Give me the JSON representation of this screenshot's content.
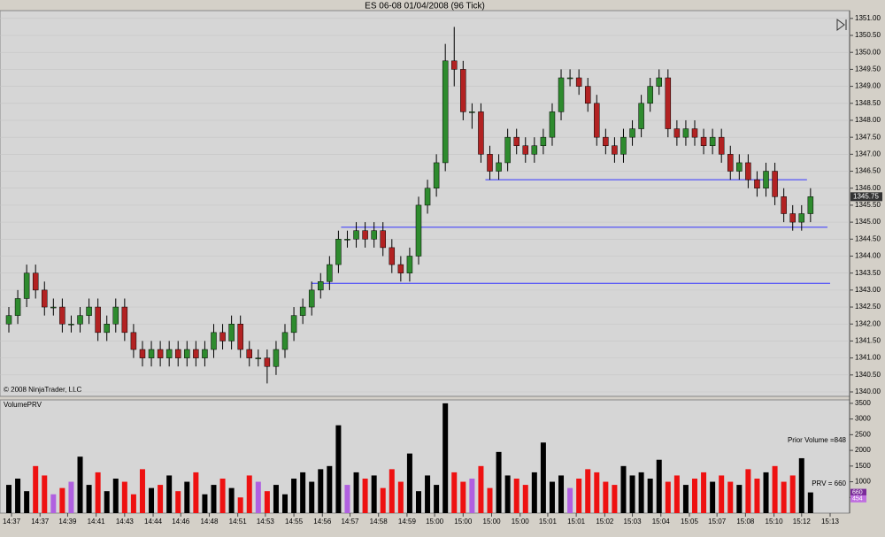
{
  "chart_data": [
    {
      "type": "candlestick",
      "title": "ES 06-08  01/04/2008 (96 Tick)",
      "copyright": "© 2008 NinjaTrader, LLC",
      "up_color": "#2e8b2e",
      "down_color": "#b22222",
      "xlim": [
        0,
        92.4
      ],
      "ylim": [
        1339.87,
        1351.23
      ],
      "xticks": [
        {
          "value": 0.3,
          "label": "14:37"
        },
        {
          "value": 3.5,
          "label": "14:37"
        },
        {
          "value": 6.6,
          "label": "14:39"
        },
        {
          "value": 9.8,
          "label": "14:41"
        },
        {
          "value": 13,
          "label": "14:43"
        },
        {
          "value": 16.2,
          "label": "14:44"
        },
        {
          "value": 19.3,
          "label": "14:46"
        },
        {
          "value": 22.5,
          "label": "14:48"
        },
        {
          "value": 25.7,
          "label": "14:51"
        },
        {
          "value": 28.8,
          "label": "14:53"
        },
        {
          "value": 32,
          "label": "14:55"
        },
        {
          "value": 35.2,
          "label": "14:56"
        },
        {
          "value": 38.3,
          "label": "14:57"
        },
        {
          "value": 41.5,
          "label": "14:58"
        },
        {
          "value": 44.7,
          "label": "14:59"
        },
        {
          "value": 47.8,
          "label": "15:00"
        },
        {
          "value": 51,
          "label": "15:00"
        },
        {
          "value": 54.2,
          "label": "15:00"
        },
        {
          "value": 57.4,
          "label": "15:00"
        },
        {
          "value": 60.5,
          "label": "15:01"
        },
        {
          "value": 63.7,
          "label": "15:01"
        },
        {
          "value": 66.9,
          "label": "15:02"
        },
        {
          "value": 70,
          "label": "15:03"
        },
        {
          "value": 73.2,
          "label": "15:04"
        },
        {
          "value": 76.4,
          "label": "15:05"
        },
        {
          "value": 79.5,
          "label": "15:07"
        },
        {
          "value": 82.7,
          "label": "15:08"
        },
        {
          "value": 85.9,
          "label": "15:10"
        },
        {
          "value": 89,
          "label": "15:12"
        },
        {
          "value": 92.2,
          "label": "15:13"
        }
      ],
      "yticks": [
        {
          "value": 1340,
          "label": "1340.00"
        },
        {
          "value": 1340.5,
          "label": "1340.50"
        },
        {
          "value": 1341,
          "label": "1341.00"
        },
        {
          "value": 1341.5,
          "label": "1341.50"
        },
        {
          "value": 1342,
          "label": "1342.00"
        },
        {
          "value": 1342.5,
          "label": "1342.50"
        },
        {
          "value": 1343,
          "label": "1343.00"
        },
        {
          "value": 1343.5,
          "label": "1343.50"
        },
        {
          "value": 1344,
          "label": "1344.00"
        },
        {
          "value": 1344.5,
          "label": "1344.50"
        },
        {
          "value": 1345,
          "label": "1345.00"
        },
        {
          "value": 1345.5,
          "label": "1345.50"
        },
        {
          "value": 1346,
          "label": "1346.00"
        },
        {
          "value": 1346.5,
          "label": "1346.50"
        },
        {
          "value": 1347,
          "label": "1347.00"
        },
        {
          "value": 1347.5,
          "label": "1347.50"
        },
        {
          "value": 1348,
          "label": "1348.00"
        },
        {
          "value": 1348.5,
          "label": "1348.50"
        },
        {
          "value": 1349,
          "label": "1349.00"
        },
        {
          "value": 1349.5,
          "label": "1349.50"
        },
        {
          "value": 1350,
          "label": "1350.00"
        },
        {
          "value": 1350.5,
          "label": "1350.50"
        },
        {
          "value": 1351,
          "label": "1351.00"
        }
      ],
      "hlines": [
        {
          "value": 1346.25,
          "from": 53.5,
          "to": 89.6,
          "color": "#3333ff"
        },
        {
          "value": 1344.85,
          "from": 37.3,
          "to": 91.9,
          "color": "#3333ff"
        },
        {
          "value": 1343.2,
          "from": 34,
          "to": 92.2,
          "color": "#3333ff"
        }
      ],
      "last_price": {
        "value": 1345.75,
        "label": "1345.75"
      },
      "open": [
        1342.0,
        1342.25,
        1342.75,
        1343.5,
        1343.0,
        1342.5,
        1342.5,
        1342.0,
        1342.0,
        1342.25,
        1342.5,
        1341.75,
        1342.0,
        1342.5,
        1341.75,
        1341.25,
        1341.0,
        1341.25,
        1341.0,
        1341.25,
        1341.0,
        1341.25,
        1341.0,
        1341.25,
        1341.75,
        1341.5,
        1342.0,
        1341.25,
        1341.0,
        1341.0,
        1340.75,
        1341.25,
        1341.75,
        1342.25,
        1342.5,
        1343.0,
        1343.25,
        1343.75,
        1344.5,
        1344.5,
        1344.75,
        1344.5,
        1344.75,
        1344.25,
        1343.75,
        1343.5,
        1344.0,
        1345.5,
        1346.0,
        1346.75,
        1349.75,
        1349.5,
        1348.25,
        1348.25,
        1347.0,
        1346.5,
        1346.75,
        1347.5,
        1347.25,
        1347.0,
        1347.25,
        1347.5,
        1348.25,
        1349.25,
        1349.25,
        1349.0,
        1348.5,
        1347.5,
        1347.25,
        1347.0,
        1347.5,
        1347.75,
        1348.5,
        1349.0,
        1349.25,
        1347.75,
        1347.5,
        1347.75,
        1347.5,
        1347.25,
        1347.5,
        1347.0,
        1346.5,
        1346.75,
        1346.25,
        1346.0,
        1346.5,
        1345.75,
        1345.25,
        1345.0,
        1345.25
      ],
      "high": [
        1342.5,
        1343.0,
        1343.75,
        1343.75,
        1343.25,
        1342.75,
        1342.75,
        1342.25,
        1342.5,
        1342.75,
        1342.75,
        1342.25,
        1342.75,
        1342.75,
        1342.0,
        1341.5,
        1341.5,
        1341.5,
        1341.5,
        1341.5,
        1341.5,
        1341.5,
        1341.5,
        1342.0,
        1342.0,
        1342.25,
        1342.25,
        1341.5,
        1341.25,
        1341.25,
        1341.5,
        1342.0,
        1342.5,
        1342.75,
        1343.25,
        1343.5,
        1344.0,
        1344.75,
        1344.75,
        1345.0,
        1345.0,
        1345.0,
        1345.0,
        1344.5,
        1344.0,
        1344.25,
        1345.75,
        1346.25,
        1347.0,
        1350.25,
        1350.75,
        1349.75,
        1348.5,
        1348.5,
        1347.25,
        1347.0,
        1347.75,
        1347.75,
        1347.5,
        1347.5,
        1347.75,
        1348.5,
        1349.5,
        1349.5,
        1349.5,
        1349.25,
        1348.75,
        1347.75,
        1347.5,
        1347.75,
        1348.0,
        1348.75,
        1349.25,
        1349.5,
        1349.5,
        1348.0,
        1348.0,
        1348.0,
        1347.75,
        1347.75,
        1347.75,
        1347.25,
        1347.0,
        1347.0,
        1346.5,
        1346.75,
        1346.75,
        1346.0,
        1345.5,
        1345.5,
        1346.0
      ],
      "low": [
        1341.75,
        1342.0,
        1342.5,
        1342.75,
        1342.25,
        1342.25,
        1341.75,
        1341.75,
        1341.75,
        1342.0,
        1341.5,
        1341.5,
        1341.75,
        1341.5,
        1341.0,
        1340.75,
        1340.75,
        1340.75,
        1340.75,
        1340.75,
        1340.75,
        1340.75,
        1340.75,
        1341.0,
        1341.25,
        1341.25,
        1341.0,
        1340.75,
        1340.75,
        1340.25,
        1340.5,
        1341.0,
        1341.5,
        1342.0,
        1342.25,
        1342.75,
        1343.0,
        1343.5,
        1344.25,
        1344.25,
        1344.25,
        1344.25,
        1344.0,
        1343.5,
        1343.25,
        1343.25,
        1343.75,
        1345.25,
        1345.75,
        1346.5,
        1349.0,
        1348.0,
        1347.75,
        1346.75,
        1346.25,
        1346.25,
        1346.5,
        1347.0,
        1346.75,
        1346.75,
        1347.0,
        1347.25,
        1348.0,
        1349.0,
        1348.75,
        1348.25,
        1347.25,
        1347.0,
        1346.75,
        1346.75,
        1347.25,
        1347.5,
        1348.25,
        1348.75,
        1347.5,
        1347.25,
        1347.25,
        1347.25,
        1347.0,
        1347.0,
        1346.75,
        1346.25,
        1346.25,
        1346.0,
        1345.75,
        1345.75,
        1345.5,
        1345.0,
        1344.75,
        1344.75,
        1345.0
      ],
      "close": [
        1342.25,
        1342.75,
        1343.5,
        1343.0,
        1342.5,
        1342.5,
        1342.0,
        1342.0,
        1342.25,
        1342.5,
        1341.75,
        1342.0,
        1342.5,
        1341.75,
        1341.25,
        1341.0,
        1341.25,
        1341.0,
        1341.25,
        1341.0,
        1341.25,
        1341.0,
        1341.25,
        1341.75,
        1341.5,
        1342.0,
        1341.25,
        1341.0,
        1341.0,
        1340.75,
        1341.25,
        1341.75,
        1342.25,
        1342.5,
        1343.0,
        1343.25,
        1343.75,
        1344.5,
        1344.5,
        1344.75,
        1344.5,
        1344.75,
        1344.25,
        1343.75,
        1343.5,
        1344.0,
        1345.5,
        1346.0,
        1346.75,
        1349.75,
        1349.5,
        1348.25,
        1348.25,
        1347.0,
        1346.5,
        1346.75,
        1347.5,
        1347.25,
        1347.0,
        1347.25,
        1347.5,
        1348.25,
        1349.25,
        1349.25,
        1349.0,
        1348.5,
        1347.5,
        1347.25,
        1347.0,
        1347.5,
        1347.75,
        1348.5,
        1349.0,
        1349.25,
        1347.75,
        1347.5,
        1347.75,
        1347.5,
        1347.25,
        1347.5,
        1347.0,
        1346.5,
        1346.75,
        1346.25,
        1346.0,
        1346.5,
        1345.75,
        1345.25,
        1345.0,
        1345.25,
        1345.75
      ]
    },
    {
      "type": "bar",
      "title": "VolumePRV",
      "prior_volume_text": "Prior Volume =848",
      "prv_text": "PRV = 660",
      "up_color": "#000000",
      "down_color": "#ee1111",
      "flat_color": "#b060e0",
      "ylim": [
        0,
        3610
      ],
      "yticks": [
        500,
        1000,
        1500,
        2000,
        2500,
        3000,
        3500
      ],
      "markers": [
        {
          "value": 660,
          "label": "660",
          "color": "#7a2a9a"
        },
        {
          "value": 454,
          "label": "454",
          "color": "#c070e0"
        }
      ],
      "values": [
        900,
        1100,
        700,
        1500,
        1200,
        600,
        800,
        1000,
        1800,
        900,
        1300,
        700,
        1100,
        1000,
        600,
        1400,
        800,
        900,
        1200,
        700,
        1000,
        1300,
        600,
        900,
        1100,
        800,
        500,
        1200,
        1000,
        700,
        900,
        600,
        1100,
        1300,
        1000,
        1400,
        1500,
        2800,
        900,
        1300,
        1100,
        1200,
        800,
        1400,
        1000,
        1900,
        700,
        1200,
        900,
        3500,
        1300,
        1000,
        1100,
        1500,
        800,
        1950,
        1200,
        1100,
        900,
        1300,
        2250,
        1000,
        1200,
        800,
        1100,
        1400,
        1300,
        1000,
        900,
        1500,
        1200,
        1300,
        1100,
        1700,
        1000,
        1200,
        900,
        1100,
        1300,
        1000,
        1200,
        1000,
        900,
        1400,
        1100,
        1300,
        1500,
        1000,
        1200,
        1750,
        660
      ]
    }
  ]
}
